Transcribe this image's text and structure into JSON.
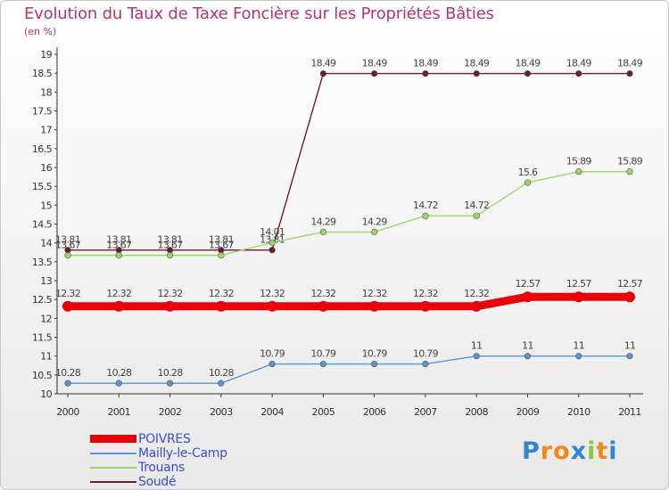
{
  "title": "Evolution du Taux de Taxe Foncière sur les Propriétés Bâties",
  "unit": "(en %)",
  "colors": {
    "POIVRES": "#e8000b",
    "Mailly-le-Camp": "#5b95cf",
    "Trouans": "#9ad86a",
    "Soudé": "#6b1d28"
  },
  "logo": {
    "text": "Proxiti",
    "letters": [
      "P",
      "r",
      "o",
      "x",
      "i",
      "t",
      "i"
    ],
    "colors": [
      "#2f86d1",
      "#ef8a1a",
      "#ef8a1a",
      "#2f86d1",
      "#8fc641",
      "#ef8a1a",
      "#2f86d1"
    ]
  },
  "chart_data": {
    "type": "line",
    "title": "Evolution du Taux de Taxe Foncière sur les Propriétés Bâties",
    "ylabel": "(en %)",
    "xlabel": "",
    "x": [
      "2000",
      "2001",
      "2002",
      "2003",
      "2004",
      "2005",
      "2006",
      "2007",
      "2008",
      "2009",
      "2010",
      "2011"
    ],
    "ylim": [
      10,
      19
    ],
    "yticks": [
      "10",
      "10.5",
      "11",
      "11.5",
      "12",
      "12.5",
      "13",
      "13.5",
      "14",
      "14.5",
      "15",
      "15.5",
      "16",
      "16.5",
      "17",
      "17.5",
      "18",
      "18.5",
      "19"
    ],
    "grid": false,
    "legend": "bottom-left",
    "series": [
      {
        "name": "Soudé",
        "values": [
          13.81,
          13.81,
          13.81,
          13.81,
          13.81,
          18.49,
          18.49,
          18.49,
          18.49,
          18.49,
          18.49,
          18.49
        ],
        "labels": [
          "13.81",
          "13.81",
          "13.81",
          "13.81",
          "13.81",
          "18.49",
          "18.49",
          "18.49",
          "18.49",
          "18.49",
          "18.49",
          "18.49"
        ]
      },
      {
        "name": "Trouans",
        "values": [
          13.67,
          13.67,
          13.67,
          13.67,
          14.01,
          14.29,
          14.29,
          14.72,
          14.72,
          15.6,
          15.89,
          15.89
        ],
        "labels": [
          "13.67",
          "13.67",
          "13.67",
          "13.67",
          "14.01",
          "14.29",
          "14.29",
          "14.72",
          "14.72",
          "15.6",
          "15.89",
          "15.89"
        ]
      },
      {
        "name": "Mailly-le-Camp",
        "values": [
          10.28,
          10.28,
          10.28,
          10.28,
          10.79,
          10.79,
          10.79,
          10.79,
          11,
          11,
          11,
          11
        ],
        "labels": [
          "10.28",
          "10.28",
          "10.28",
          "10.28",
          "10.79",
          "10.79",
          "10.79",
          "10.79",
          "11",
          "11",
          "11",
          "11"
        ]
      },
      {
        "name": "POIVRES",
        "values": [
          12.32,
          12.32,
          12.32,
          12.32,
          12.32,
          12.32,
          12.32,
          12.32,
          12.32,
          12.57,
          12.57,
          12.57
        ],
        "labels": [
          "12.32",
          "12.32",
          "12.32",
          "12.32",
          "12.32",
          "12.32",
          "12.32",
          "12.32",
          "12.32",
          "12.57",
          "12.57",
          "12.57"
        ]
      }
    ],
    "legend_entries": [
      "POIVRES",
      "Mailly-le-Camp",
      "Trouans",
      "Soudé"
    ]
  }
}
